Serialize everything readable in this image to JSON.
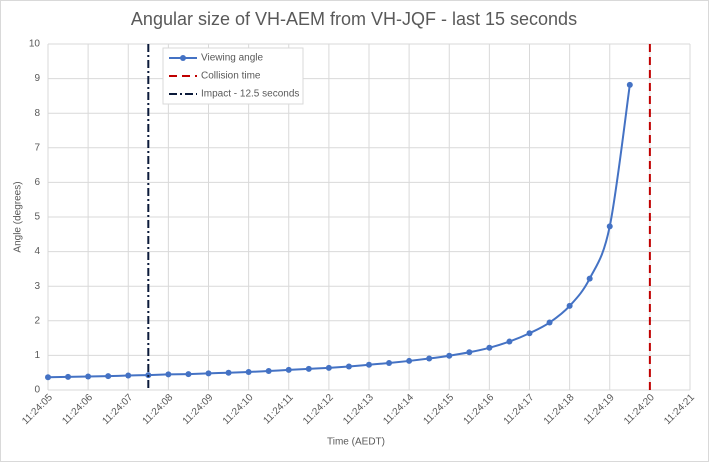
{
  "chart_data": {
    "type": "line",
    "title": "Angular size of VH-AEM from VH-JQF - last 15 seconds",
    "x_label": "Time (AEDT)",
    "y_label": "Angle (degrees)",
    "x": [
      5,
      5.5,
      6,
      6.5,
      7,
      7.5,
      8,
      8.5,
      9,
      9.5,
      10,
      10.5,
      11,
      11.5,
      12,
      12.5,
      13,
      13.5,
      14,
      14.5,
      15,
      15.5,
      16,
      16.5,
      17,
      17.5,
      18,
      18.5,
      19,
      19.5
    ],
    "series": [
      {
        "name": "Viewing angle",
        "color": "#4472c4",
        "values": [
          0.37,
          0.38,
          0.39,
          0.4,
          0.42,
          0.43,
          0.45,
          0.46,
          0.48,
          0.5,
          0.52,
          0.55,
          0.58,
          0.61,
          0.64,
          0.68,
          0.73,
          0.78,
          0.84,
          0.91,
          0.99,
          1.09,
          1.22,
          1.4,
          1.64,
          1.95,
          2.43,
          3.22,
          4.73,
          8.82
        ]
      }
    ],
    "vlines": [
      {
        "name": "Collision time",
        "x": 20,
        "color": "#c00000",
        "style": "dashed"
      },
      {
        "name": "Impact - 12.5 seconds",
        "x": 7.5,
        "color": "#0b1a3a",
        "style": "dashdot"
      }
    ],
    "xlim": [
      5,
      21
    ],
    "xticks": [
      {
        "value": 5,
        "label": "11:24:05"
      },
      {
        "value": 6,
        "label": "11:24:06"
      },
      {
        "value": 7,
        "label": "11:24:07"
      },
      {
        "value": 8,
        "label": "11:24:08"
      },
      {
        "value": 9,
        "label": "11:24:09"
      },
      {
        "value": 10,
        "label": "11:24:10"
      },
      {
        "value": 11,
        "label": "11:24:11"
      },
      {
        "value": 12,
        "label": "11:24:12"
      },
      {
        "value": 13,
        "label": "11:24:13"
      },
      {
        "value": 14,
        "label": "11:24:14"
      },
      {
        "value": 15,
        "label": "11:24:15"
      },
      {
        "value": 16,
        "label": "11:24:16"
      },
      {
        "value": 17,
        "label": "11:24:17"
      },
      {
        "value": 18,
        "label": "11:24:18"
      },
      {
        "value": 19,
        "label": "11:24:19"
      },
      {
        "value": 20,
        "label": "11:24:20"
      },
      {
        "value": 21,
        "label": "11:24:21"
      }
    ],
    "ylim": [
      0,
      10
    ],
    "yticks": [
      0,
      1,
      2,
      3,
      4,
      5,
      6,
      7,
      8,
      9,
      10
    ],
    "grid": true,
    "legend": "top-left"
  }
}
